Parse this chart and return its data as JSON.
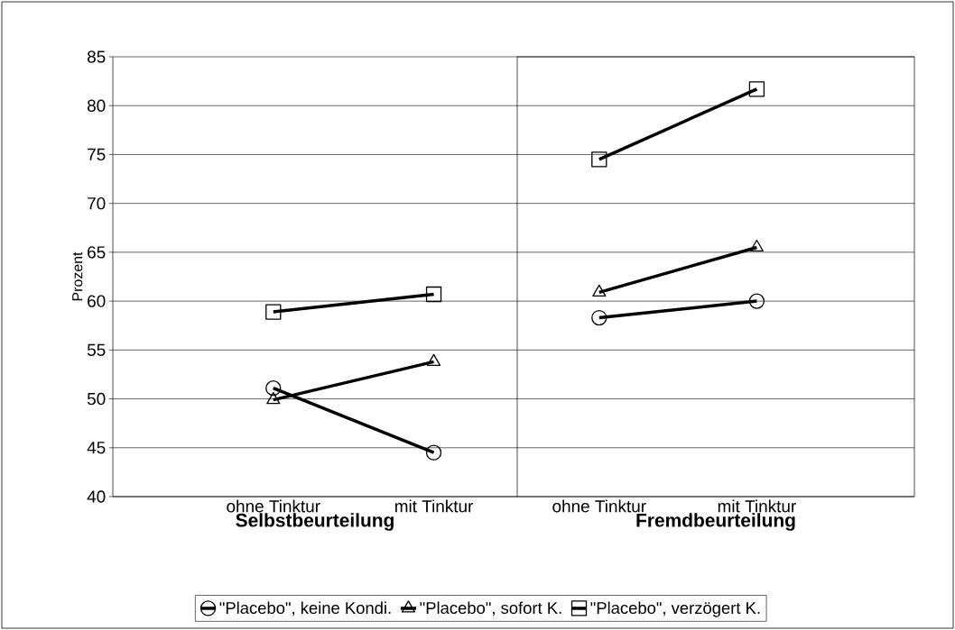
{
  "chart_data": [
    {
      "type": "line",
      "categories": [
        "ohne Tinktur",
        "mit Tinktur"
      ],
      "xlabel": "Selbstbeurteilung",
      "ylabel": "Prozent",
      "ylim": [
        40,
        85
      ],
      "yticks": [
        40,
        45,
        50,
        55,
        60,
        65,
        70,
        75,
        80,
        85
      ],
      "grid": "y",
      "legend": "bottom",
      "line_style": "solid",
      "series": [
        {
          "name": "\"Placebo\", keine Kondi.",
          "color": "#000000",
          "marker": "circle",
          "values": [
            51.1,
            44.5
          ]
        },
        {
          "name": "\"Placebo\", sofort K.",
          "color": "#000000",
          "marker": "triangle",
          "values": [
            49.9,
            53.8
          ]
        },
        {
          "name": "\"Placebo\", verzögert K.",
          "color": "#000000",
          "marker": "square",
          "values": [
            58.9,
            60.7
          ]
        }
      ]
    },
    {
      "type": "line",
      "categories": [
        "ohne Tinktur",
        "mit Tinktur"
      ],
      "xlabel": "Fremdbeurteilung",
      "ylim": [
        40,
        85
      ],
      "yticks": [
        40,
        45,
        50,
        55,
        60,
        65,
        70,
        75,
        80,
        85
      ],
      "grid": "y",
      "tick_labels": "x",
      "line_style": "solid",
      "series": [
        {
          "color": "#000000",
          "marker": "circle",
          "values": [
            58.3,
            60.0
          ]
        },
        {
          "color": "#000000",
          "marker": "triangle",
          "values": [
            60.9,
            65.5
          ]
        },
        {
          "color": "#000000",
          "marker": "square",
          "values": [
            74.5,
            81.7
          ]
        }
      ]
    }
  ]
}
